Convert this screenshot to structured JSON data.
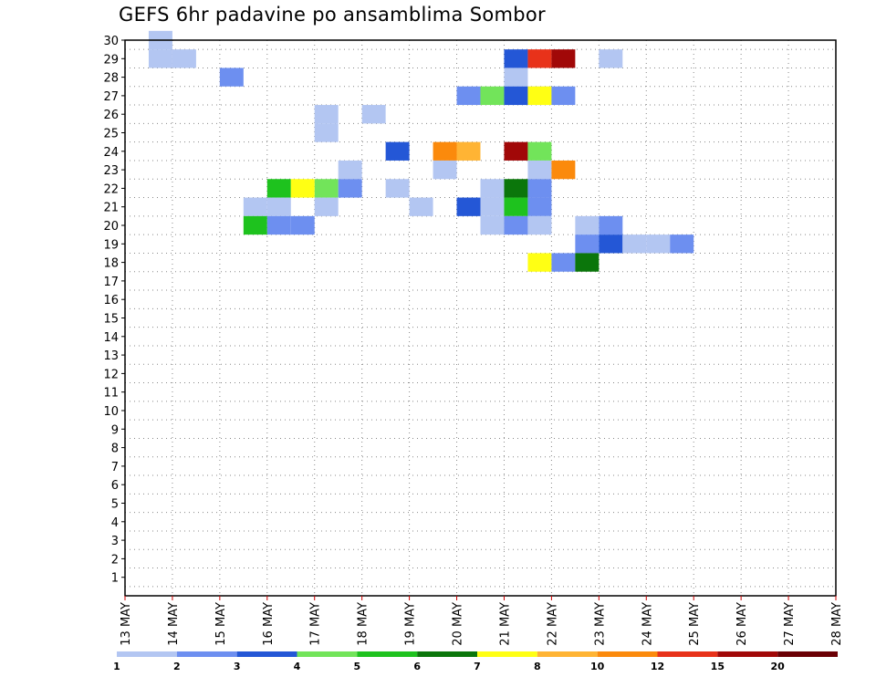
{
  "chart_data": {
    "type": "heatmap",
    "title": "GEFS 6hr padavine po ansamblima Sombor",
    "xlabel": "",
    "ylabel": "",
    "x_tick_labels": [
      "13 MAY",
      "14 MAY",
      "15 MAY",
      "16 MAY",
      "17 MAY",
      "18 MAY",
      "19 MAY",
      "20 MAY",
      "21 MAY",
      "22 MAY",
      "23 MAY",
      "24 MAY",
      "25 MAY",
      "26 MAY",
      "27 MAY",
      "28 MAY"
    ],
    "y_tick_labels": [
      "1",
      "2",
      "3",
      "4",
      "5",
      "6",
      "7",
      "8",
      "9",
      "10",
      "11",
      "12",
      "13",
      "14",
      "15",
      "16",
      "17",
      "18",
      "19",
      "20",
      "21",
      "22",
      "23",
      "24",
      "25",
      "26",
      "27",
      "28",
      "29",
      "30"
    ],
    "xlim": [
      0,
      60
    ],
    "ylim": [
      0,
      30
    ],
    "grid": true,
    "colorbar": {
      "position": "bottom",
      "labels": [
        "1",
        "2",
        "3",
        "4",
        "5",
        "6",
        "7",
        "8",
        "10",
        "12",
        "15",
        "20"
      ],
      "colors": [
        "#b3c6f2",
        "#6d8ff0",
        "#2457d6",
        "#72e45a",
        "#1ec21e",
        "#0b760b",
        "#ffff14",
        "#ffb434",
        "#fb8a0c",
        "#e8321a",
        "#a10808",
        "#6b0004"
      ]
    },
    "cells": [
      [
        1,
        29,
        0
      ],
      [
        1,
        30,
        0
      ],
      [
        2,
        29,
        0
      ],
      [
        16,
        29,
        2
      ],
      [
        17,
        29,
        9
      ],
      [
        18,
        29,
        10
      ],
      [
        20,
        29,
        0
      ],
      [
        4,
        28,
        1
      ],
      [
        16,
        28,
        0
      ],
      [
        14,
        27,
        1
      ],
      [
        15,
        27,
        3
      ],
      [
        16,
        27,
        0
      ],
      [
        17,
        27,
        0
      ],
      [
        16,
        27,
        2
      ],
      [
        17,
        27,
        6
      ],
      [
        18,
        27,
        1
      ],
      [
        10,
        26,
        0
      ],
      [
        8,
        26,
        0
      ],
      [
        8,
        25,
        0
      ],
      [
        11,
        24,
        2
      ],
      [
        14,
        24,
        7
      ],
      [
        16,
        24,
        10
      ],
      [
        13,
        24,
        8
      ],
      [
        17,
        24,
        3
      ],
      [
        9,
        23,
        0
      ],
      [
        13,
        23,
        0
      ],
      [
        17,
        23,
        0
      ],
      [
        18,
        23,
        8
      ],
      [
        8,
        22,
        3
      ],
      [
        6,
        22,
        4
      ],
      [
        7,
        22,
        6
      ],
      [
        9,
        22,
        1
      ],
      [
        11,
        22,
        0
      ],
      [
        15,
        22,
        0
      ],
      [
        16,
        22,
        5
      ],
      [
        17,
        22,
        1
      ],
      [
        8,
        21,
        0
      ],
      [
        5,
        21,
        0
      ],
      [
        6,
        21,
        0
      ],
      [
        12,
        21,
        0
      ],
      [
        15,
        21,
        0
      ],
      [
        16,
        21,
        4
      ],
      [
        17,
        21,
        1
      ],
      [
        14,
        21,
        2
      ],
      [
        5,
        20,
        4
      ],
      [
        6,
        20,
        1
      ],
      [
        7,
        20,
        1
      ],
      [
        15,
        20,
        0
      ],
      [
        16,
        20,
        1
      ],
      [
        17,
        20,
        0
      ],
      [
        19,
        20,
        0
      ],
      [
        20,
        20,
        1
      ],
      [
        19,
        19,
        1
      ],
      [
        20,
        19,
        2
      ],
      [
        21,
        19,
        0
      ],
      [
        22,
        19,
        0
      ],
      [
        23,
        19,
        1
      ],
      [
        17,
        18,
        6
      ],
      [
        18,
        18,
        1
      ],
      [
        19,
        18,
        5
      ]
    ]
  }
}
